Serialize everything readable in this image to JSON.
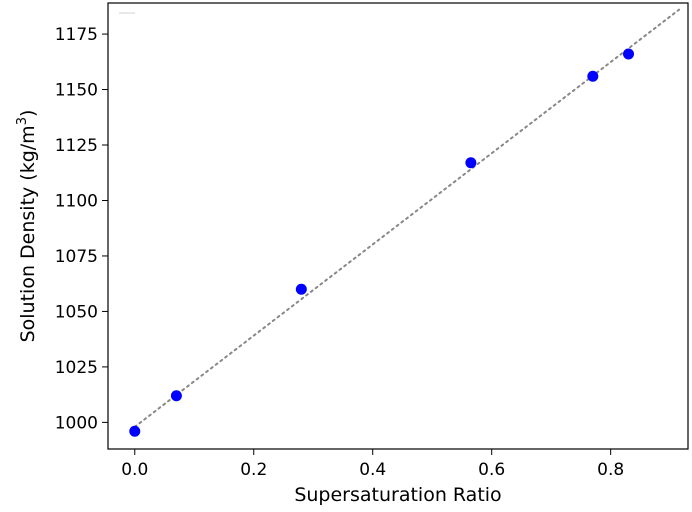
{
  "chart_data": {
    "type": "scatter",
    "xlabel": "Supersaturation Ratio",
    "ylabel": "Solution Density (kg/m3)",
    "ylabel_base": "Solution Density (kg/m",
    "ylabel_sup": "3",
    "ylabel_close": ")",
    "xlim": [
      -0.045,
      0.93
    ],
    "ylim": [
      988,
      1189
    ],
    "xticks": [
      0.0,
      0.2,
      0.4,
      0.6,
      0.8
    ],
    "xtick_labels": [
      "0.0",
      "0.2",
      "0.4",
      "0.6",
      "0.8"
    ],
    "yticks": [
      1000,
      1025,
      1050,
      1075,
      1100,
      1125,
      1150,
      1175
    ],
    "ytick_labels": [
      "1000",
      "1025",
      "1050",
      "1075",
      "1100",
      "1125",
      "1150",
      "1175"
    ],
    "grid": false,
    "series": [
      {
        "marker": "circle",
        "color": "#0000ff",
        "points": [
          {
            "x": 0.0,
            "y": 996
          },
          {
            "x": 0.07,
            "y": 1012
          },
          {
            "x": 0.28,
            "y": 1060
          },
          {
            "x": 0.565,
            "y": 1117
          },
          {
            "x": 0.77,
            "y": 1156
          },
          {
            "x": 0.83,
            "y": 1166
          }
        ]
      }
    ],
    "fit_line": {
      "style": "dotted",
      "color": "#888888",
      "points": [
        {
          "x": 0.0,
          "y": 998
        },
        {
          "x": 0.915,
          "y": 1186
        }
      ]
    }
  }
}
